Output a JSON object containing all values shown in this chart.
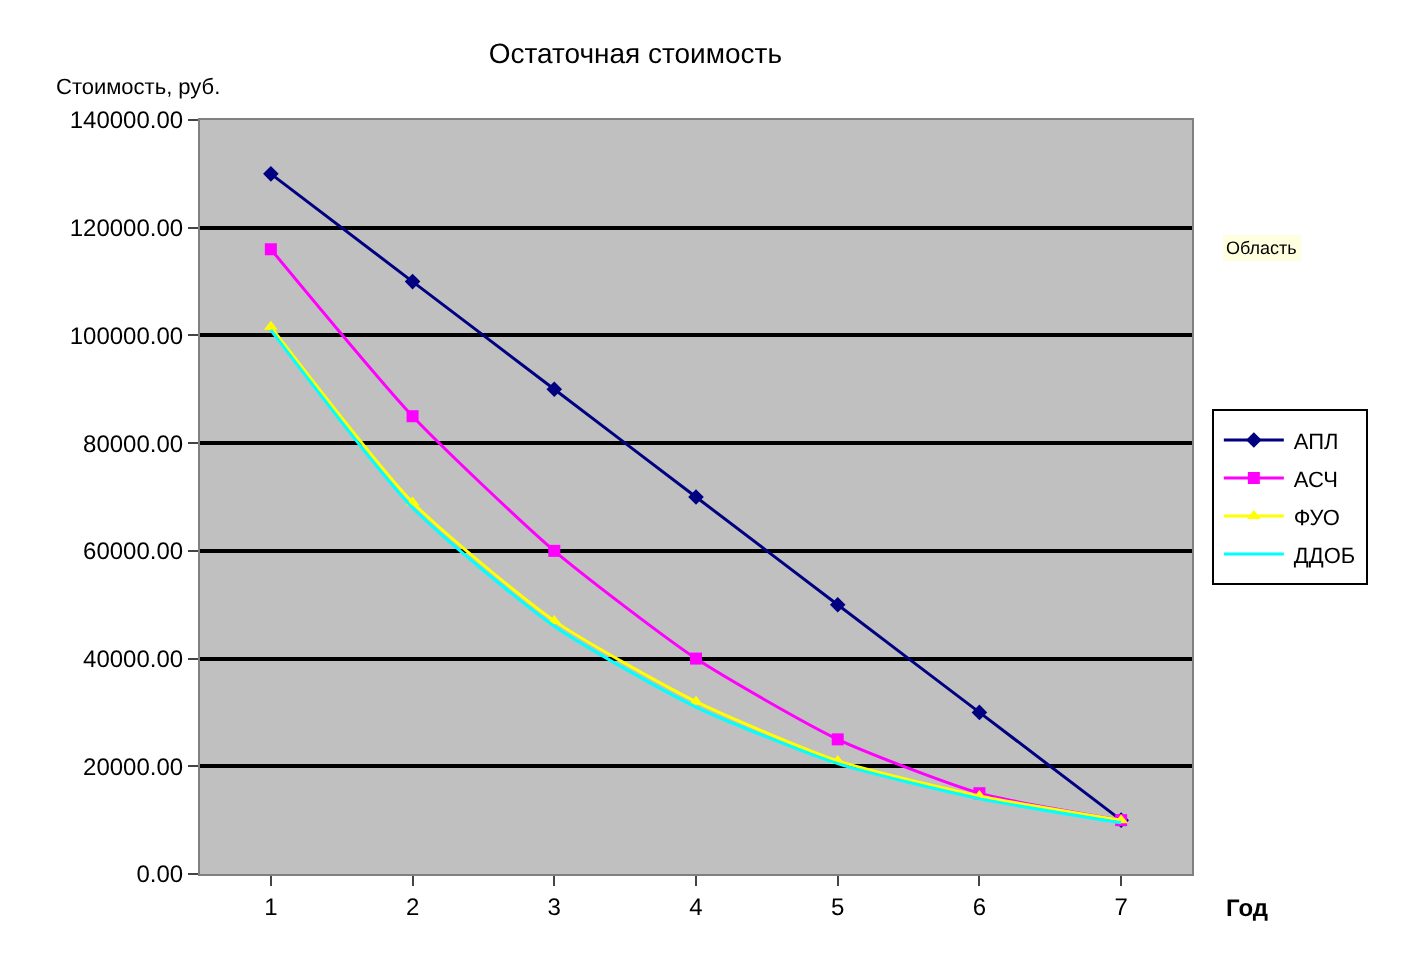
{
  "chart_data": {
    "type": "line",
    "title": "Остаточная стоимость",
    "xlabel": "Год",
    "ylabel": "Стоимость, руб.",
    "categories": [
      "1",
      "2",
      "3",
      "4",
      "5",
      "6",
      "7"
    ],
    "series": [
      {
        "name": "АПЛ",
        "color": "#000080",
        "marker": "diamond",
        "values": [
          130000,
          110000,
          90000,
          70000,
          50000,
          30000,
          10000
        ]
      },
      {
        "name": "АСЧ",
        "color": "#ff00ff",
        "marker": "square",
        "values": [
          116000,
          85000,
          60000,
          40000,
          25000,
          15000,
          10000
        ]
      },
      {
        "name": "ФУО",
        "color": "#ffff00",
        "marker": "triangle",
        "values": [
          101600,
          69000,
          47000,
          32000,
          21000,
          14500,
          10000
        ]
      },
      {
        "name": "ДДОБ",
        "color": "#00ffff",
        "marker": "none",
        "values": [
          101000,
          68000,
          46000,
          31000,
          20500,
          14000,
          9500
        ]
      }
    ],
    "ylim": [
      0,
      140000
    ],
    "yticks": [
      {
        "value": 0,
        "label": "0.00"
      },
      {
        "value": 20000,
        "label": "20000.00"
      },
      {
        "value": 40000,
        "label": "40000.00"
      },
      {
        "value": 60000,
        "label": "60000.00"
      },
      {
        "value": 80000,
        "label": "80000.00"
      },
      {
        "value": 100000,
        "label": "100000.00"
      },
      {
        "value": 120000,
        "label": "120000.00"
      },
      {
        "value": 140000,
        "label": "140000.00"
      }
    ],
    "grid": "y",
    "legend": "right",
    "annotations": [
      "Область"
    ]
  }
}
